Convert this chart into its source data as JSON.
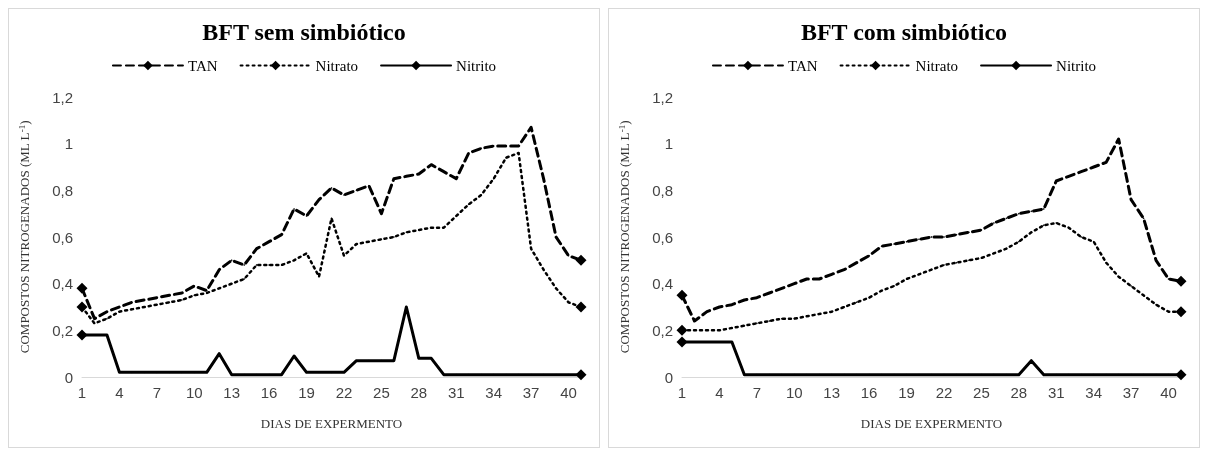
{
  "chart_data": [
    {
      "type": "line",
      "title": "BFT sem simbiótico",
      "xlabel": "DIAS DE EXPERMENTO",
      "ylabel": "COMPOSTOS NITROGENADOS (ML L$^{-1}$)",
      "categories": [
        "1",
        null,
        null,
        "4",
        null,
        null,
        "7",
        null,
        null,
        "10",
        null,
        null,
        "13",
        null,
        null,
        "16",
        null,
        null,
        "19",
        null,
        null,
        "22",
        null,
        null,
        "25",
        null,
        null,
        "28",
        null,
        null,
        "31",
        null,
        null,
        "34",
        null,
        null,
        "37",
        null,
        null,
        "40",
        null
      ],
      "ylim": [
        0,
        1.2
      ],
      "yticks": [
        {
          "value": 0,
          "label": "0"
        },
        {
          "value": 0.2,
          "label": "0,2"
        },
        {
          "value": 0.4,
          "label": "0,4"
        },
        {
          "value": 0.6,
          "label": "0,6"
        },
        {
          "value": 0.8,
          "label": "0,8"
        },
        {
          "value": 1,
          "label": "1"
        },
        {
          "value": 1.2,
          "label": "1,2"
        }
      ],
      "grid": false,
      "legend": "top",
      "marker": "diamond",
      "series": [
        {
          "name": "TAN",
          "color": "#000000",
          "line_style": "dashed",
          "values": [
            0.38,
            0.25,
            0.28,
            0.3,
            0.32,
            0.33,
            0.34,
            0.35,
            0.36,
            0.39,
            0.37,
            0.46,
            0.5,
            0.48,
            0.55,
            0.58,
            0.61,
            0.72,
            0.69,
            0.76,
            0.81,
            0.78,
            0.8,
            0.82,
            0.7,
            0.85,
            0.86,
            0.87,
            0.91,
            0.88,
            0.85,
            0.96,
            0.98,
            0.99,
            0.99,
            0.99,
            1.07,
            0.85,
            0.6,
            0.52,
            0.5
          ]
        },
        {
          "name": "Nitrato",
          "color": "#000000",
          "line_style": "dotted",
          "values": [
            0.3,
            0.23,
            0.25,
            0.28,
            0.29,
            0.3,
            0.31,
            0.32,
            0.33,
            0.35,
            0.36,
            0.38,
            0.4,
            0.42,
            0.48,
            0.48,
            0.48,
            0.5,
            0.53,
            0.43,
            0.68,
            0.52,
            0.57,
            0.58,
            0.59,
            0.6,
            0.62,
            0.63,
            0.64,
            0.64,
            0.69,
            0.74,
            0.78,
            0.85,
            0.94,
            0.96,
            0.55,
            0.46,
            0.38,
            0.32,
            0.3
          ]
        },
        {
          "name": "Nitrito",
          "color": "#000000",
          "line_style": "solid",
          "values": [
            0.18,
            0.18,
            0.18,
            0.02,
            0.02,
            0.02,
            0.02,
            0.02,
            0.02,
            0.02,
            0.02,
            0.1,
            0.01,
            0.01,
            0.01,
            0.01,
            0.01,
            0.09,
            0.02,
            0.02,
            0.02,
            0.02,
            0.07,
            0.07,
            0.07,
            0.07,
            0.3,
            0.08,
            0.08,
            0.01,
            0.01,
            0.01,
            0.01,
            0.01,
            0.01,
            0.01,
            0.01,
            0.01,
            0.01,
            0.01,
            0.01
          ]
        }
      ]
    },
    {
      "type": "line",
      "title": "BFT com simbiótico",
      "xlabel": "DIAS DE EXPERMENTO",
      "ylabel": "COMPOSTOS NITROGENADOS (ML L$^{-1}$)",
      "categories": [
        "1",
        null,
        null,
        "4",
        null,
        null,
        "7",
        null,
        null,
        "10",
        null,
        null,
        "13",
        null,
        null,
        "16",
        null,
        null,
        "19",
        null,
        null,
        "22",
        null,
        null,
        "25",
        null,
        null,
        "28",
        null,
        null,
        "31",
        null,
        null,
        "34",
        null,
        null,
        "37",
        null,
        null,
        "40",
        null
      ],
      "ylim": [
        0,
        1.2
      ],
      "yticks": [
        {
          "value": 0,
          "label": "0"
        },
        {
          "value": 0.2,
          "label": "0,2"
        },
        {
          "value": 0.4,
          "label": "0,4"
        },
        {
          "value": 0.6,
          "label": "0,6"
        },
        {
          "value": 0.8,
          "label": "0,8"
        },
        {
          "value": 1,
          "label": "1"
        },
        {
          "value": 1.2,
          "label": "1,2"
        }
      ],
      "grid": false,
      "legend": "top",
      "marker": "diamond",
      "series": [
        {
          "name": "TAN",
          "color": "#000000",
          "line_style": "dashed",
          "values": [
            0.35,
            0.24,
            0.28,
            0.3,
            0.31,
            0.33,
            0.34,
            0.36,
            0.38,
            0.4,
            0.42,
            0.42,
            0.44,
            0.46,
            0.49,
            0.52,
            0.56,
            0.57,
            0.58,
            0.59,
            0.6,
            0.6,
            0.61,
            0.62,
            0.63,
            0.66,
            0.68,
            0.7,
            0.71,
            0.72,
            0.84,
            0.86,
            0.88,
            0.9,
            0.92,
            1.02,
            0.76,
            0.68,
            0.5,
            0.42,
            0.41
          ]
        },
        {
          "name": "Nitrato",
          "color": "#000000",
          "line_style": "dotted",
          "values": [
            0.2,
            0.2,
            0.2,
            0.2,
            0.21,
            0.22,
            0.23,
            0.24,
            0.25,
            0.25,
            0.26,
            0.27,
            0.28,
            0.3,
            0.32,
            0.34,
            0.37,
            0.39,
            0.42,
            0.44,
            0.46,
            0.48,
            0.49,
            0.5,
            0.51,
            0.53,
            0.55,
            0.58,
            0.62,
            0.65,
            0.66,
            0.64,
            0.6,
            0.58,
            0.49,
            0.43,
            0.39,
            0.35,
            0.31,
            0.28,
            0.28
          ]
        },
        {
          "name": "Nitrito",
          "color": "#000000",
          "line_style": "solid",
          "values": [
            0.15,
            0.15,
            0.15,
            0.15,
            0.15,
            0.01,
            0.01,
            0.01,
            0.01,
            0.01,
            0.01,
            0.01,
            0.01,
            0.01,
            0.01,
            0.01,
            0.01,
            0.01,
            0.01,
            0.01,
            0.01,
            0.01,
            0.01,
            0.01,
            0.01,
            0.01,
            0.01,
            0.01,
            0.07,
            0.01,
            0.01,
            0.01,
            0.01,
            0.01,
            0.01,
            0.01,
            0.01,
            0.01,
            0.01,
            0.01,
            0.01
          ]
        }
      ]
    }
  ]
}
